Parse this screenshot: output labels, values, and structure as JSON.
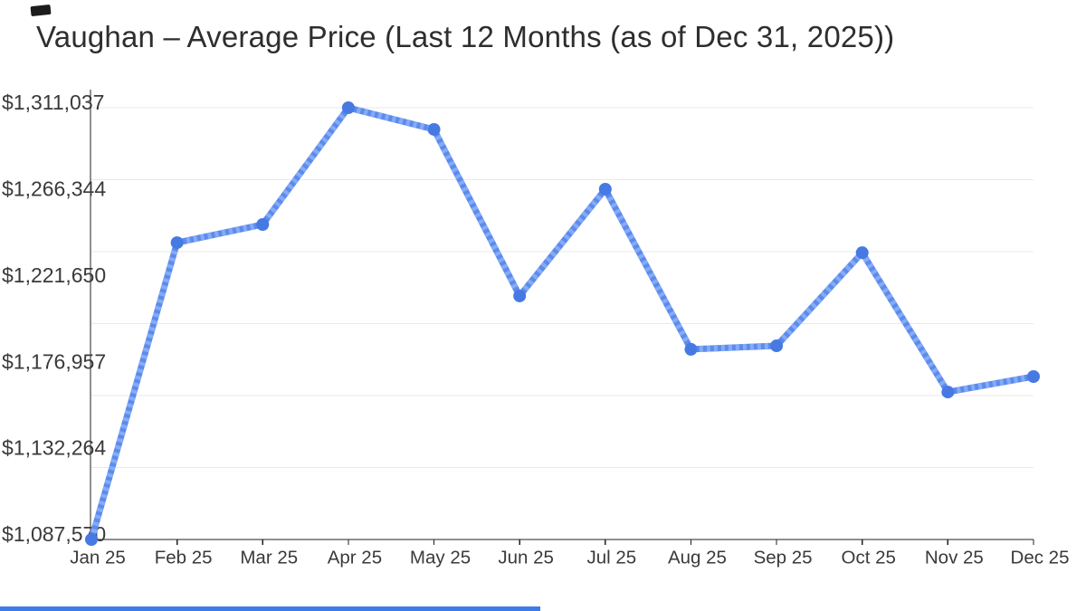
{
  "title": "Vaughan – Average Price (Last 12 Months (as of Dec 31, 2025))",
  "chart_data": {
    "type": "line",
    "title": "Vaughan – Average Price (Last 12 Months (as of Dec 31, 2025))",
    "series_name": "Average Price",
    "categories": [
      "Jan 25",
      "Feb 25",
      "Mar 25",
      "Apr 25",
      "May 25",
      "Jun 25",
      "Jul 25",
      "Aug 25",
      "Sep 25",
      "Oct 25",
      "Nov 25",
      "Dec 25"
    ],
    "values": [
      1087570,
      1241200,
      1250600,
      1311037,
      1299800,
      1213600,
      1268900,
      1186000,
      1187800,
      1236000,
      1163900,
      1171900
    ],
    "ylim": [
      1087570,
      1311037
    ],
    "y_tick_labels": [
      "$1,087,570",
      "$1,132,264",
      "$1,176,957",
      "$1,221,650",
      "$1,266,344",
      "$1,311,037"
    ],
    "xlabel": "",
    "ylabel": "",
    "grid": true,
    "legend_position": "none",
    "gridline_rows": 6
  },
  "colors": {
    "line": "#5b8bee",
    "line_stripe": "#86abf4",
    "point": "#4679e2",
    "grid": "#e9e9e9",
    "axis": "#212121",
    "tick_text": "#3a3a3a",
    "title_text": "#2e2e2e",
    "scrollbar": "#3d7be9"
  }
}
